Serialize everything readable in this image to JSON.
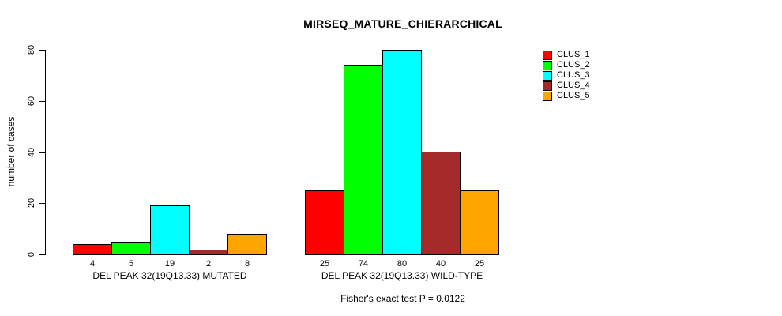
{
  "title": "MIRSEQ_MATURE_CHIERARCHICAL",
  "caption": "Fisher's exact test P = 0.0122",
  "y_axis": {
    "label": "number of cases",
    "ticks": [
      0,
      20,
      40,
      60,
      80
    ]
  },
  "legend": {
    "entries": [
      {
        "label": "CLUS_1",
        "color": "#FF0000"
      },
      {
        "label": "CLUS_2",
        "color": "#00FF00"
      },
      {
        "label": "CLUS_3",
        "color": "#00FFFF"
      },
      {
        "label": "CLUS_4",
        "color": "#A52A2A"
      },
      {
        "label": "CLUS_5",
        "color": "#FFA500"
      }
    ]
  },
  "chart_data": {
    "type": "bar",
    "title": "MIRSEQ_MATURE_CHIERARCHICAL",
    "xlabel": "",
    "ylabel": "number of cases",
    "ylim": [
      0,
      80
    ],
    "y_ticks": [
      0,
      20,
      40,
      60,
      80
    ],
    "grid": false,
    "legend_position": "right",
    "categories": [
      "DEL PEAK 32(19Q13.33) MUTATED",
      "DEL PEAK 32(19Q13.33) WILD-TYPE"
    ],
    "series": [
      {
        "name": "CLUS_1",
        "color": "#FF0000",
        "values": [
          4,
          25
        ]
      },
      {
        "name": "CLUS_2",
        "color": "#00FF00",
        "values": [
          5,
          74
        ]
      },
      {
        "name": "CLUS_3",
        "color": "#00FFFF",
        "values": [
          19,
          80
        ]
      },
      {
        "name": "CLUS_4",
        "color": "#A52A2A",
        "values": [
          2,
          40
        ]
      },
      {
        "name": "CLUS_5",
        "color": "#FFA500",
        "values": [
          8,
          25
        ]
      }
    ],
    "bar_value_labels": [
      [
        4,
        5,
        19,
        2,
        8
      ],
      [
        25,
        74,
        80,
        40,
        25
      ]
    ],
    "annotation": "Fisher's exact test P = 0.0122"
  }
}
